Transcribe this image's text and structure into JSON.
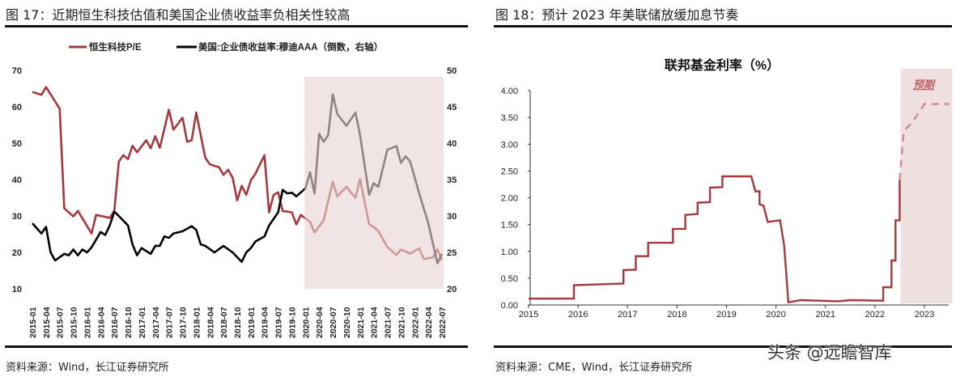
{
  "left": {
    "figure_title": "图 17：近期恒生科技估值和美国企业债收益率负相关性较高",
    "source": "资料来源：Wind，长江证券研究所"
  },
  "right": {
    "figure_title": "图 18：预计 2023 年美联储放缓加息节奏",
    "source": "资料来源：CME，Wind，长江证券研究所"
  },
  "watermark": "头条 @远瞻智库",
  "chart_data": [
    {
      "type": "line",
      "legend_position": "top",
      "grid": false,
      "xlim": [
        "2015-01",
        "2022-07"
      ],
      "x_tick_labels": [
        "2015-01",
        "2015-04",
        "2015-07",
        "2015-10",
        "2016-01",
        "2016-04",
        "2016-07",
        "2016-10",
        "2017-01",
        "2017-04",
        "2017-07",
        "2017-10",
        "2018-01",
        "2018-04",
        "2018-07",
        "2018-10",
        "2019-01",
        "2019-04",
        "2019-07",
        "2019-10",
        "2020-01",
        "2020-04",
        "2020-07",
        "2020-10",
        "2021-01",
        "2021-04",
        "2021-07",
        "2021-10",
        "2022-01",
        "2022-04",
        "2022-07"
      ],
      "y_left": {
        "ylim": [
          10,
          70
        ],
        "ticks": [
          "10",
          "20",
          "30",
          "40",
          "50",
          "60",
          "70"
        ]
      },
      "y_right": {
        "ylim": [
          20,
          50
        ],
        "ticks": [
          "20",
          "25",
          "30",
          "35",
          "40",
          "45",
          "50"
        ]
      },
      "shaded_range": [
        "2020-01",
        "2022-07"
      ],
      "shade_color": "#e6d3d3",
      "series": [
        {
          "name": "恒生科技P/E",
          "axis": "left",
          "color": "#a5383c",
          "points": [
            [
              "2015-01",
              64.1
            ],
            [
              "2015-03",
              63.3
            ],
            [
              "2015-04",
              65.4
            ],
            [
              "2015-07",
              59.5
            ],
            [
              "2015-08",
              32.1
            ],
            [
              "2015-10",
              29.9
            ],
            [
              "2015-11",
              31.4
            ],
            [
              "2016-02",
              25.2
            ],
            [
              "2016-03",
              30.3
            ],
            [
              "2016-06",
              29.5
            ],
            [
              "2016-07",
              31.4
            ],
            [
              "2016-08",
              44.9
            ],
            [
              "2016-09",
              46.7
            ],
            [
              "2016-10",
              45.6
            ],
            [
              "2016-11",
              49.3
            ],
            [
              "2016-12",
              47.5
            ],
            [
              "2017-02",
              50.8
            ],
            [
              "2017-03",
              48.6
            ],
            [
              "2017-04",
              51.9
            ],
            [
              "2017-05",
              48.7
            ],
            [
              "2017-07",
              59.2
            ],
            [
              "2017-08",
              53.7
            ],
            [
              "2017-10",
              57.0
            ],
            [
              "2017-11",
              50.4
            ],
            [
              "2017-12",
              50.8
            ],
            [
              "2018-01",
              58.4
            ],
            [
              "2018-03",
              46.0
            ],
            [
              "2018-04",
              44.2
            ],
            [
              "2018-06",
              43.4
            ],
            [
              "2018-07",
              41.3
            ],
            [
              "2018-08",
              42.7
            ],
            [
              "2018-09",
              40.5
            ],
            [
              "2018-10",
              34.3
            ],
            [
              "2018-11",
              38.3
            ],
            [
              "2018-12",
              35.8
            ],
            [
              "2019-01",
              39.8
            ],
            [
              "2019-02",
              41.6
            ],
            [
              "2019-04",
              46.7
            ],
            [
              "2019-05",
              31.0
            ],
            [
              "2019-06",
              35.8
            ],
            [
              "2019-07",
              36.5
            ],
            [
              "2019-08",
              31.4
            ],
            [
              "2019-10",
              31.0
            ],
            [
              "2019-11",
              27.7
            ],
            [
              "2019-12",
              30.3
            ],
            [
              "2020-02",
              28.4
            ],
            [
              "2020-03",
              25.5
            ],
            [
              "2020-05",
              28.8
            ],
            [
              "2020-07",
              39.4
            ],
            [
              "2020-08",
              35.4
            ],
            [
              "2020-10",
              38.0
            ],
            [
              "2020-12",
              35.0
            ],
            [
              "2021-01",
              40.2
            ],
            [
              "2021-03",
              27.7
            ],
            [
              "2021-04",
              27.0
            ],
            [
              "2021-05",
              25.9
            ],
            [
              "2021-07",
              21.5
            ],
            [
              "2021-09",
              19.3
            ],
            [
              "2021-10",
              20.8
            ],
            [
              "2021-12",
              19.7
            ],
            [
              "2022-02",
              21.1
            ],
            [
              "2022-03",
              18.2
            ],
            [
              "2022-05",
              18.6
            ],
            [
              "2022-06",
              20.8
            ],
            [
              "2022-07",
              17.8
            ]
          ]
        },
        {
          "name": "美国:企业债收益率:穆迪AAA（倒数，右轴）",
          "axis": "right",
          "color": "#000000",
          "points": [
            [
              "2015-01",
              29.0
            ],
            [
              "2015-03",
              27.6
            ],
            [
              "2015-04",
              28.5
            ],
            [
              "2015-05",
              25.0
            ],
            [
              "2015-06",
              23.9
            ],
            [
              "2015-08",
              24.8
            ],
            [
              "2015-09",
              24.6
            ],
            [
              "2015-10",
              25.4
            ],
            [
              "2015-11",
              24.6
            ],
            [
              "2015-12",
              25.4
            ],
            [
              "2016-01",
              25.0
            ],
            [
              "2016-02",
              25.7
            ],
            [
              "2016-04",
              27.8
            ],
            [
              "2016-05",
              27.4
            ],
            [
              "2016-06",
              28.7
            ],
            [
              "2016-07",
              30.6
            ],
            [
              "2016-08",
              30.0
            ],
            [
              "2016-10",
              28.7
            ],
            [
              "2016-11",
              26.1
            ],
            [
              "2016-12",
              24.6
            ],
            [
              "2017-01",
              25.6
            ],
            [
              "2017-03",
              24.8
            ],
            [
              "2017-04",
              25.9
            ],
            [
              "2017-05",
              25.9
            ],
            [
              "2017-06",
              27.2
            ],
            [
              "2017-07",
              27.0
            ],
            [
              "2017-08",
              27.6
            ],
            [
              "2017-10",
              27.9
            ],
            [
              "2017-12",
              28.6
            ],
            [
              "2018-01",
              28.1
            ],
            [
              "2018-02",
              26.1
            ],
            [
              "2018-03",
              25.9
            ],
            [
              "2018-05",
              25.0
            ],
            [
              "2018-07",
              25.9
            ],
            [
              "2018-09",
              25.0
            ],
            [
              "2018-11",
              23.7
            ],
            [
              "2018-12",
              25.0
            ],
            [
              "2019-01",
              25.6
            ],
            [
              "2019-02",
              26.5
            ],
            [
              "2019-04",
              27.2
            ],
            [
              "2019-05",
              28.7
            ],
            [
              "2019-07",
              30.5
            ],
            [
              "2019-08",
              33.6
            ],
            [
              "2019-09",
              33.1
            ],
            [
              "2019-10",
              33.2
            ],
            [
              "2019-11",
              32.7
            ],
            [
              "2020-01",
              33.8
            ],
            [
              "2020-02",
              36.0
            ],
            [
              "2020-03",
              33.1
            ],
            [
              "2020-04",
              41.3
            ],
            [
              "2020-05",
              40.2
            ],
            [
              "2020-06",
              41.1
            ],
            [
              "2020-07",
              46.7
            ],
            [
              "2020-08",
              44.0
            ],
            [
              "2020-10",
              42.4
            ],
            [
              "2020-12",
              44.2
            ],
            [
              "2021-01",
              41.1
            ],
            [
              "2021-03",
              32.9
            ],
            [
              "2021-04",
              34.5
            ],
            [
              "2021-05",
              34.0
            ],
            [
              "2021-07",
              39.1
            ],
            [
              "2021-09",
              39.6
            ],
            [
              "2021-10",
              37.3
            ],
            [
              "2021-11",
              38.2
            ],
            [
              "2021-12",
              37.5
            ],
            [
              "2022-02",
              33.1
            ],
            [
              "2022-04",
              29.0
            ],
            [
              "2022-06",
              23.5
            ],
            [
              "2022-07",
              24.8
            ]
          ]
        }
      ]
    },
    {
      "type": "line",
      "title": "联邦基金利率（%）",
      "grid": false,
      "xlim": [
        "2015-01",
        "2023-07"
      ],
      "x_tick_labels": [
        "2015",
        "2016",
        "2017",
        "2018",
        "2019",
        "2020",
        "2021",
        "2022",
        "2023"
      ],
      "ylim": [
        0,
        4
      ],
      "y_tick_labels": [
        "0.00",
        "0.50",
        "1.00",
        "1.50",
        "2.00",
        "2.50",
        "3.00",
        "3.50",
        "4.00"
      ],
      "shaded_range": [
        "2022-07",
        "2023-07"
      ],
      "shade_label": "预期",
      "shade_color": "#efe0e0",
      "series": [
        {
          "style": "solid",
          "color": "#a5383c",
          "points": [
            [
              "2015-01",
              0.12
            ],
            [
              "2015-12",
              0.12
            ],
            [
              "2015-12",
              0.37
            ],
            [
              "2016-12",
              0.4
            ],
            [
              "2016-12",
              0.65
            ],
            [
              "2017-03",
              0.66
            ],
            [
              "2017-03",
              0.91
            ],
            [
              "2017-06",
              0.91
            ],
            [
              "2017-06",
              1.16
            ],
            [
              "2017-12",
              1.16
            ],
            [
              "2017-12",
              1.42
            ],
            [
              "2018-03",
              1.42
            ],
            [
              "2018-03",
              1.68
            ],
            [
              "2018-06",
              1.7
            ],
            [
              "2018-06",
              1.91
            ],
            [
              "2018-09",
              1.92
            ],
            [
              "2018-09",
              2.19
            ],
            [
              "2018-12",
              2.2
            ],
            [
              "2018-12",
              2.4
            ],
            [
              "2019-07",
              2.4
            ],
            [
              "2019-08",
              2.12
            ],
            [
              "2019-09",
              2.12
            ],
            [
              "2019-09",
              1.88
            ],
            [
              "2019-10",
              1.85
            ],
            [
              "2019-11",
              1.55
            ],
            [
              "2020-02",
              1.58
            ],
            [
              "2020-03",
              1.1
            ],
            [
              "2020-04",
              0.05
            ],
            [
              "2020-07",
              0.09
            ],
            [
              "2021-04",
              0.07
            ],
            [
              "2021-07",
              0.09
            ],
            [
              "2022-03",
              0.08
            ],
            [
              "2022-03",
              0.33
            ],
            [
              "2022-05",
              0.33
            ],
            [
              "2022-05",
              0.83
            ],
            [
              "2022-06",
              0.83
            ],
            [
              "2022-06",
              1.58
            ],
            [
              "2022-07",
              1.58
            ],
            [
              "2022-07",
              2.33
            ]
          ]
        },
        {
          "style": "dashed",
          "color": "#c98a8e",
          "points": [
            [
              "2022-07",
              2.33
            ],
            [
              "2022-08",
              3.25
            ],
            [
              "2022-10",
              3.4
            ],
            [
              "2023-01",
              3.75
            ],
            [
              "2023-07",
              3.75
            ]
          ]
        }
      ]
    }
  ]
}
